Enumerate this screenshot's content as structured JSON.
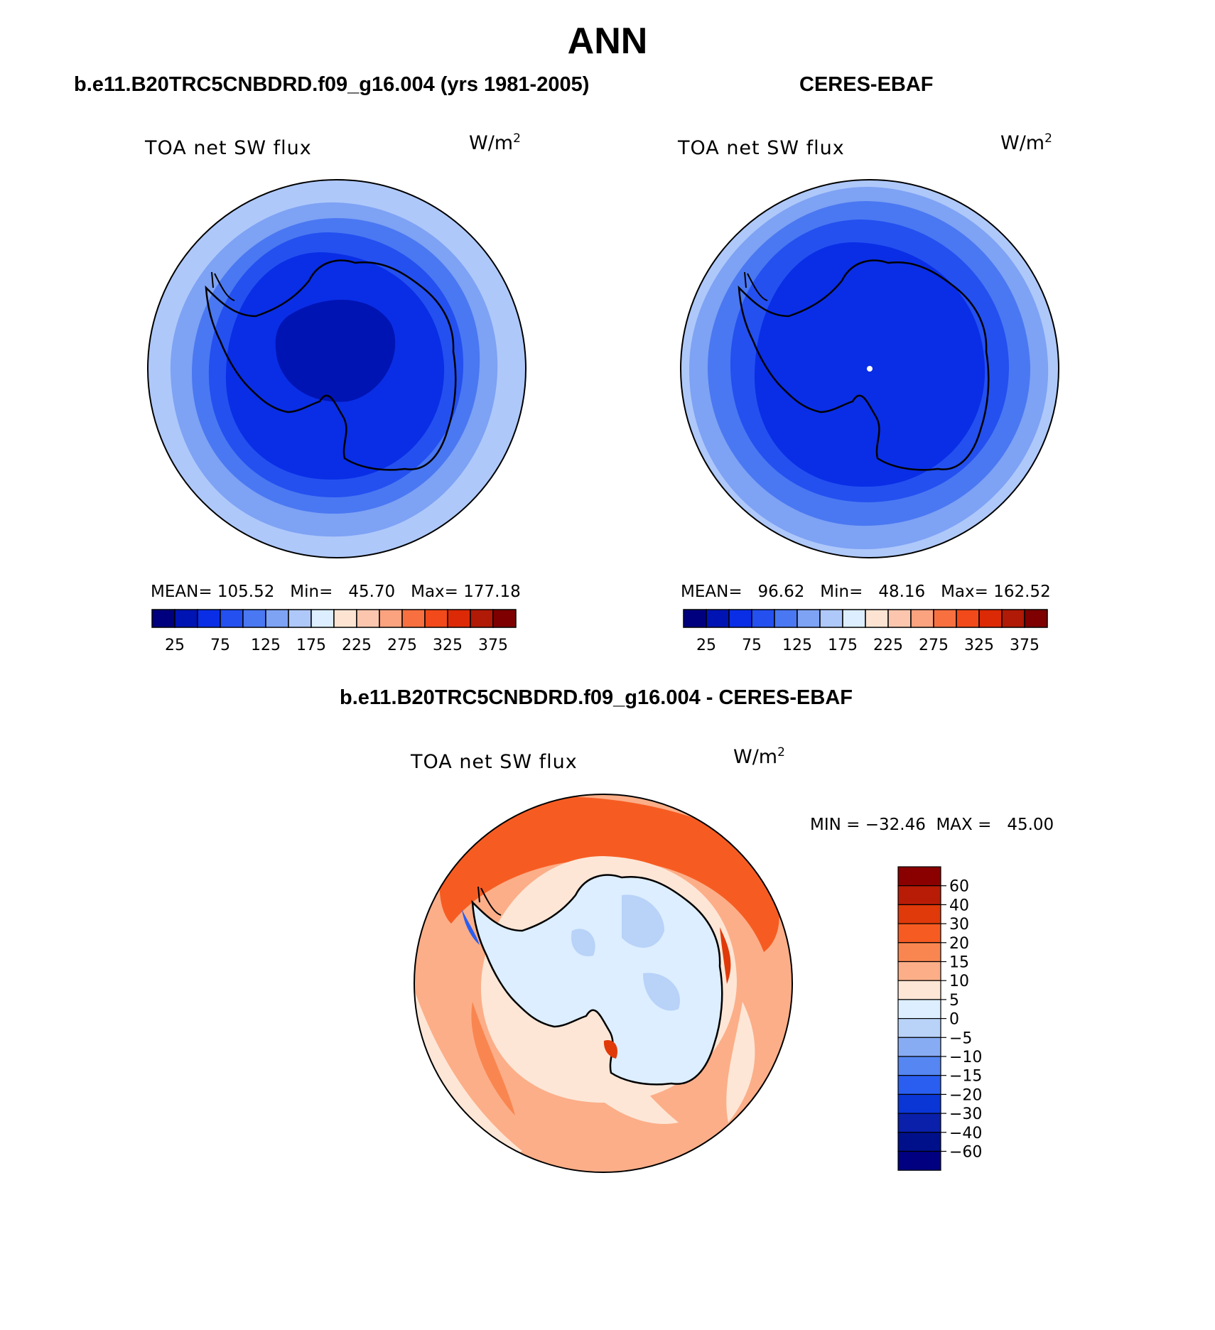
{
  "figure": {
    "season": "ANN",
    "diff_title": "b.e11.B20TRC5CNBDRD.f09_g16.004 - CERES-EBAF"
  },
  "panels": [
    {
      "title": "b.e11.B20TRC5CNBDRD.f09_g16.004 (yrs 1981-2005)",
      "variable": "TOA net SW flux",
      "units": "W/m",
      "units_sup": "2",
      "stats": "MEAN= 105.52   Min=   45.70   Max= 177.18"
    },
    {
      "title": "CERES-EBAF",
      "variable": "TOA net SW flux",
      "units": "W/m",
      "units_sup": "2",
      "stats": "MEAN=   96.62   Min=   48.16   Max= 162.52"
    },
    {
      "variable": "TOA net SW flux",
      "units": "W/m",
      "units_sup": "2",
      "stats": "MIN = −32.46  MAX =   45.00"
    }
  ],
  "colorbar_abs": {
    "labels": [
      "25",
      "75",
      "125",
      "175",
      "225",
      "275",
      "325",
      "375"
    ],
    "colors": [
      "#00007f",
      "#0014b4",
      "#0a2ee6",
      "#2450f0",
      "#4a78f2",
      "#7ea2f4",
      "#aec8fa",
      "#dceeff",
      "#fde4d2",
      "#fcc6ae",
      "#fba27e",
      "#f97040",
      "#f24a1a",
      "#dc2a06",
      "#b01a06",
      "#7e0000"
    ]
  },
  "colorbar_diff": {
    "labels": [
      "60",
      "40",
      "30",
      "20",
      "15",
      "10",
      "5",
      "0",
      "−5",
      "−10",
      "−15",
      "−20",
      "−30",
      "−40",
      "−60"
    ],
    "colors": [
      "#8a0000",
      "#b81c06",
      "#e03a0a",
      "#f65c22",
      "#f98650",
      "#fcae88",
      "#fde6d6",
      "#dceeff",
      "#b8d2f8",
      "#88acf4",
      "#5586f2",
      "#2a5ef0",
      "#0a36d6",
      "#0a20aa",
      "#00108a",
      "#000080"
    ]
  }
}
